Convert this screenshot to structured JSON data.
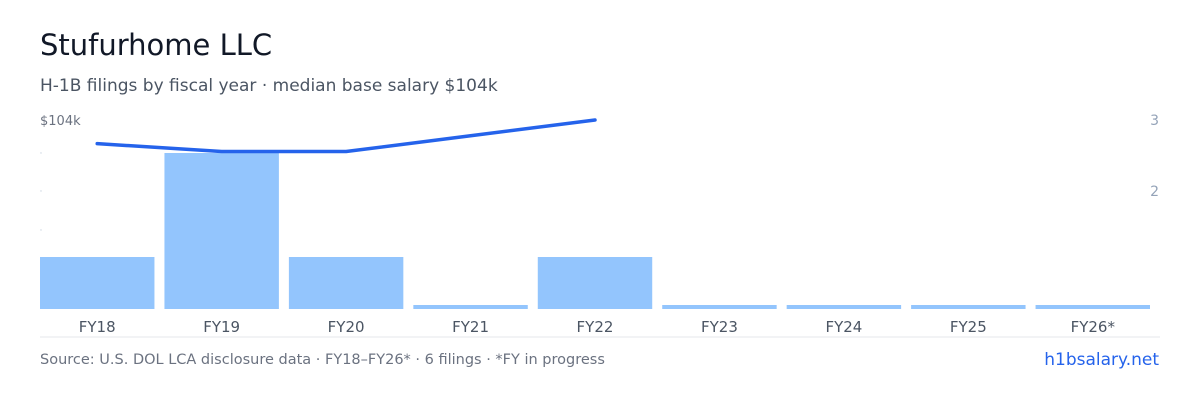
{
  "header": {
    "title": "Stufurhome LLC",
    "subtitle": "H-1B filings by fiscal year · median base salary $104k"
  },
  "footer": {
    "source": "Source: U.S. DOL LCA disclosure data · FY18–FY26* · 6 filings · *FY in progress",
    "brand": "h1bsalary.net"
  },
  "chart_data": {
    "type": "bar",
    "categories": [
      "FY18",
      "FY19",
      "FY20",
      "FY21",
      "FY22",
      "FY23",
      "FY24",
      "FY25",
      "FY26*"
    ],
    "series": [
      {
        "kind": "bar",
        "axis": "right",
        "values": [
          1,
          3,
          1,
          0,
          1,
          0,
          0,
          0,
          0
        ]
      },
      {
        "kind": "line",
        "axis": "left",
        "values": [
          101,
          100,
          100,
          102,
          104,
          null,
          null,
          null,
          null
        ]
      }
    ],
    "left_axis": {
      "tick_labels": [
        "$104k"
      ],
      "ylim": [
        80,
        104
      ]
    },
    "right_axis": {
      "tick_labels": [
        "3",
        "2"
      ],
      "ylim": [
        0,
        3
      ]
    },
    "colors": {
      "bar": "#93c5fd",
      "line": "#2563eb",
      "axis_text": "#94a3b8",
      "baseline": "#e5e7eb"
    },
    "grid": false,
    "legend": "none"
  }
}
